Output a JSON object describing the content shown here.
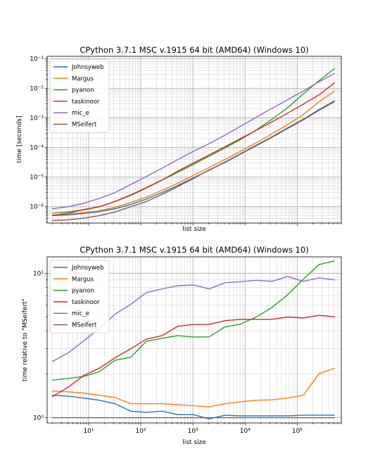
{
  "chart_data": [
    {
      "type": "line",
      "title": "CPython 3.7.1 MSC v.1915 64 bit (AMD64) (Windows 10)",
      "xlabel": "list size",
      "ylabel": "time [seconds]",
      "xscale": "log",
      "yscale": "log",
      "xlim": [
        1.6,
        700000
      ],
      "ylim": [
        2.8e-07,
        0.12
      ],
      "x_tick_labels_visible": false,
      "y_ticks": [
        {
          "value": 1e-06,
          "label": "10⁻⁶"
        },
        {
          "value": 1e-05,
          "label": "10⁻⁵"
        },
        {
          "value": 0.0001,
          "label": "10⁻⁴"
        },
        {
          "value": 0.001,
          "label": "10⁻³"
        },
        {
          "value": 0.01,
          "label": "10⁻²"
        },
        {
          "value": 0.1,
          "label": "10⁻¹"
        }
      ],
      "grid": "major and minor",
      "legend_position": "top-left",
      "x": [
        2,
        4,
        8,
        16,
        32,
        64,
        128,
        256,
        512,
        1024,
        2048,
        4096,
        8192,
        16384,
        32768,
        65536,
        131072,
        262144,
        524288
      ],
      "series": [
        {
          "name": "Johnsyweb",
          "color": "#1f77b4",
          "values": [
            5e-07,
            5.3e-07,
            5.9e-07,
            6.8e-07,
            8.5e-07,
            1.2e-06,
            1.8e-06,
            3e-06,
            5.2e-06,
            9.5e-06,
            1.7e-05,
            3.2e-05,
            6.2e-05,
            0.00012,
            0.00023,
            0.00046,
            0.0009,
            0.0019,
            0.0038
          ]
        },
        {
          "name": "Margus",
          "color": "#ff7f0e",
          "values": [
            5.2e-07,
            5.7e-07,
            6.3e-07,
            7.3e-07,
            9.5e-07,
            1.4e-06,
            2.1e-06,
            3.6e-06,
            6.2e-06,
            1.15e-05,
            2.1e-05,
            3.9e-05,
            7.5e-05,
            0.000145,
            0.00029,
            0.00059,
            0.0013,
            0.0035,
            0.0082
          ]
        },
        {
          "name": "pyanon",
          "color": "#2ca02c",
          "values": [
            6e-07,
            6.7e-07,
            7.8e-07,
            1e-06,
            1.5e-06,
            2.4e-06,
            4.3e-06,
            7.9e-06,
            1.45e-05,
            2.7e-05,
            5.1e-05,
            9.6e-05,
            0.000185,
            0.00039,
            0.0009,
            0.0022,
            0.0065,
            0.018,
            0.047
          ]
        },
        {
          "name": "taskinoor",
          "color": "#d62728",
          "values": [
            5e-07,
            6e-07,
            8e-07,
            1e-06,
            1.5e-06,
            2.5e-06,
            4.4e-06,
            8e-06,
            1.6e-05,
            3e-05,
            5.6e-05,
            0.000105,
            0.0002,
            0.00038,
            0.00073,
            0.00145,
            0.0029,
            0.006,
            0.0155
          ]
        },
        {
          "name": "mic_e",
          "color": "#9467bd",
          "values": [
            8.5e-07,
            1e-06,
            1.3e-06,
            1.9e-06,
            3e-06,
            5.6e-06,
            1.05e-05,
            2e-05,
            3.9e-05,
            7.5e-05,
            0.000135,
            0.00026,
            0.00052,
            0.00105,
            0.0021,
            0.0041,
            0.0081,
            0.0165,
            0.032
          ]
        },
        {
          "name": "MSeifert",
          "color": "#8c564b",
          "values": [
            3.4e-07,
            3.6e-07,
            4.1e-07,
            5e-07,
            6.6e-07,
            1e-06,
            1.5e-06,
            2.6e-06,
            4.8e-06,
            9e-06,
            1.75e-05,
            3.1e-05,
            6e-05,
            0.000115,
            0.00022,
            0.00044,
            0.00086,
            0.0018,
            0.0036
          ]
        }
      ]
    },
    {
      "type": "line",
      "title": "CPython 3.7.1 MSC v.1915 64 bit (AMD64) (Windows 10)",
      "xlabel": "list size",
      "ylabel": "time relative to \"MSeifert\"",
      "xscale": "log",
      "yscale": "log",
      "xlim": [
        1.6,
        700000
      ],
      "ylim": [
        0.92,
        13
      ],
      "x_ticks": [
        {
          "value": 10,
          "label": "10¹"
        },
        {
          "value": 100,
          "label": "10²"
        },
        {
          "value": 1000,
          "label": "10³"
        },
        {
          "value": 10000,
          "label": "10⁴"
        },
        {
          "value": 100000,
          "label": "10⁵"
        }
      ],
      "y_ticks": [
        {
          "value": 1,
          "label": "10⁰"
        },
        {
          "value": 10,
          "label": "10¹"
        }
      ],
      "grid": "major and minor",
      "legend_position": "top-left",
      "x": [
        2,
        4,
        8,
        16,
        32,
        64,
        128,
        256,
        512,
        1024,
        2048,
        4096,
        8192,
        16384,
        32768,
        65536,
        131072,
        262144,
        524288
      ],
      "series": [
        {
          "name": "Johnsyweb",
          "color": "#1f77b4",
          "values": [
            1.43,
            1.41,
            1.37,
            1.32,
            1.25,
            1.11,
            1.09,
            1.11,
            1.05,
            1.05,
            0.98,
            1.04,
            1.03,
            1.03,
            1.03,
            1.03,
            1.04,
            1.04,
            1.04
          ]
        },
        {
          "name": "Margus",
          "color": "#ff7f0e",
          "values": [
            1.53,
            1.51,
            1.48,
            1.43,
            1.38,
            1.25,
            1.25,
            1.25,
            1.23,
            1.21,
            1.19,
            1.25,
            1.29,
            1.32,
            1.33,
            1.37,
            1.43,
            2.02,
            2.2
          ]
        },
        {
          "name": "pyanon",
          "color": "#2ca02c",
          "values": [
            1.82,
            1.87,
            1.93,
            2.08,
            2.5,
            2.62,
            3.38,
            3.55,
            3.7,
            3.62,
            3.63,
            4.25,
            4.45,
            4.98,
            5.8,
            7.1,
            9.1,
            11.5,
            12.2
          ]
        },
        {
          "name": "taskinoor",
          "color": "#d62728",
          "values": [
            1.4,
            1.62,
            1.96,
            2.2,
            2.6,
            3.0,
            3.5,
            3.7,
            4.3,
            4.42,
            4.43,
            4.7,
            4.8,
            4.8,
            4.8,
            4.98,
            4.9,
            5.12,
            5.0
          ]
        },
        {
          "name": "mic_e",
          "color": "#9467bd",
          "values": [
            2.45,
            2.8,
            3.4,
            4.15,
            5.2,
            6.1,
            7.35,
            7.8,
            8.2,
            8.3,
            7.8,
            8.6,
            8.75,
            8.95,
            8.8,
            9.5,
            8.8,
            9.3,
            9.0
          ]
        },
        {
          "name": "MSeifert",
          "color": "#8c564b",
          "values": [
            1,
            1,
            1,
            1,
            1,
            1,
            1,
            1,
            1,
            1,
            1,
            1,
            1,
            1,
            1,
            1,
            1,
            1,
            1
          ]
        }
      ]
    }
  ]
}
